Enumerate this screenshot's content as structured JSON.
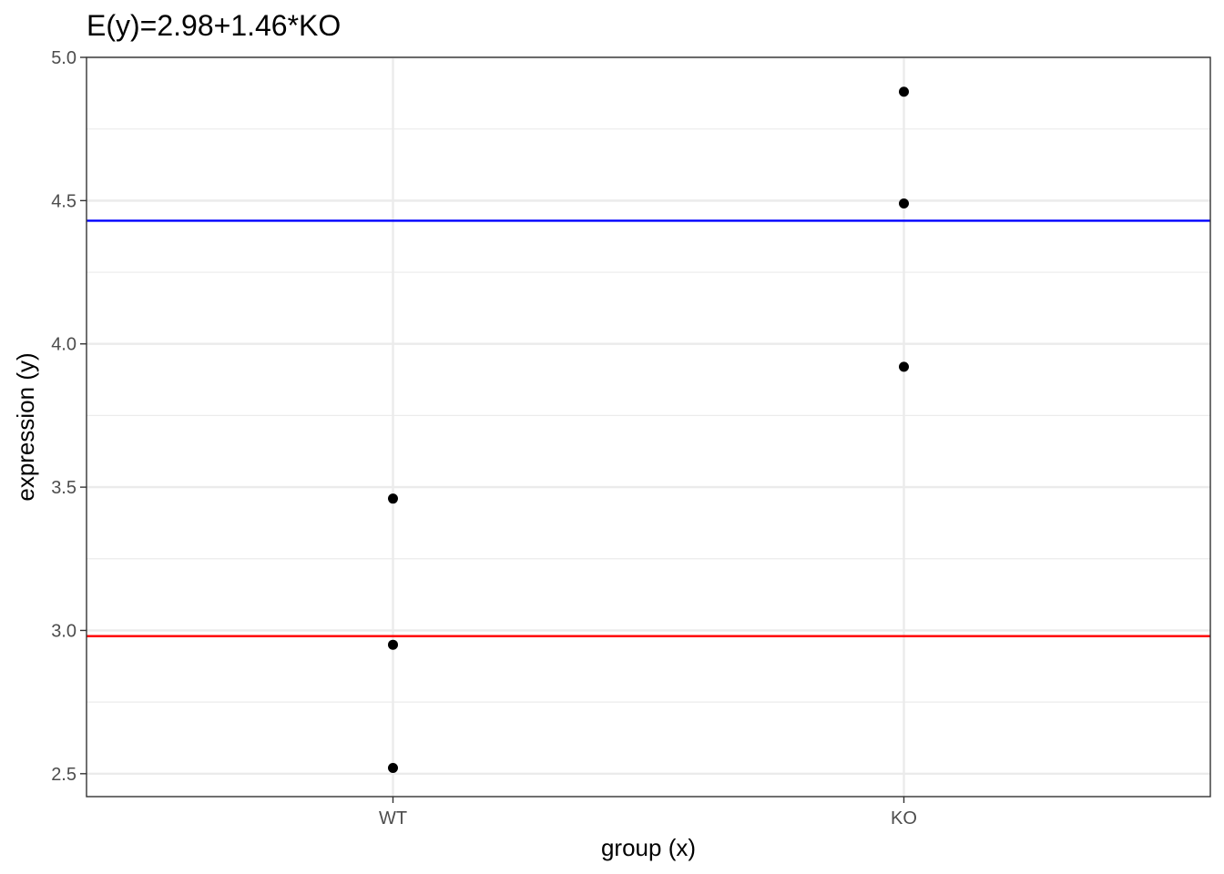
{
  "chart_data": {
    "type": "scatter",
    "title": "E(y)=2.98+1.46*KO",
    "xlabel": "group (x)",
    "ylabel": "expression (y)",
    "categories": [
      "WT",
      "KO"
    ],
    "ylim": [
      2.42,
      5.0
    ],
    "yticks": [
      "2.5",
      "3.0",
      "3.5",
      "4.0",
      "4.5",
      "5.0"
    ],
    "ytick_values": [
      2.5,
      3.0,
      3.5,
      4.0,
      4.5,
      5.0
    ],
    "grid": true,
    "series": [
      {
        "points": [
          {
            "x": "WT",
            "y": 2.52
          },
          {
            "x": "WT",
            "y": 2.95
          },
          {
            "x": "WT",
            "y": 3.46
          },
          {
            "x": "KO",
            "y": 3.92
          },
          {
            "x": "KO",
            "y": 4.49
          },
          {
            "x": "KO",
            "y": 4.88
          }
        ],
        "color": "#000000"
      }
    ],
    "hlines": [
      {
        "y": 4.43,
        "color": "#0000ff"
      },
      {
        "y": 2.98,
        "color": "#ff0000"
      }
    ]
  }
}
